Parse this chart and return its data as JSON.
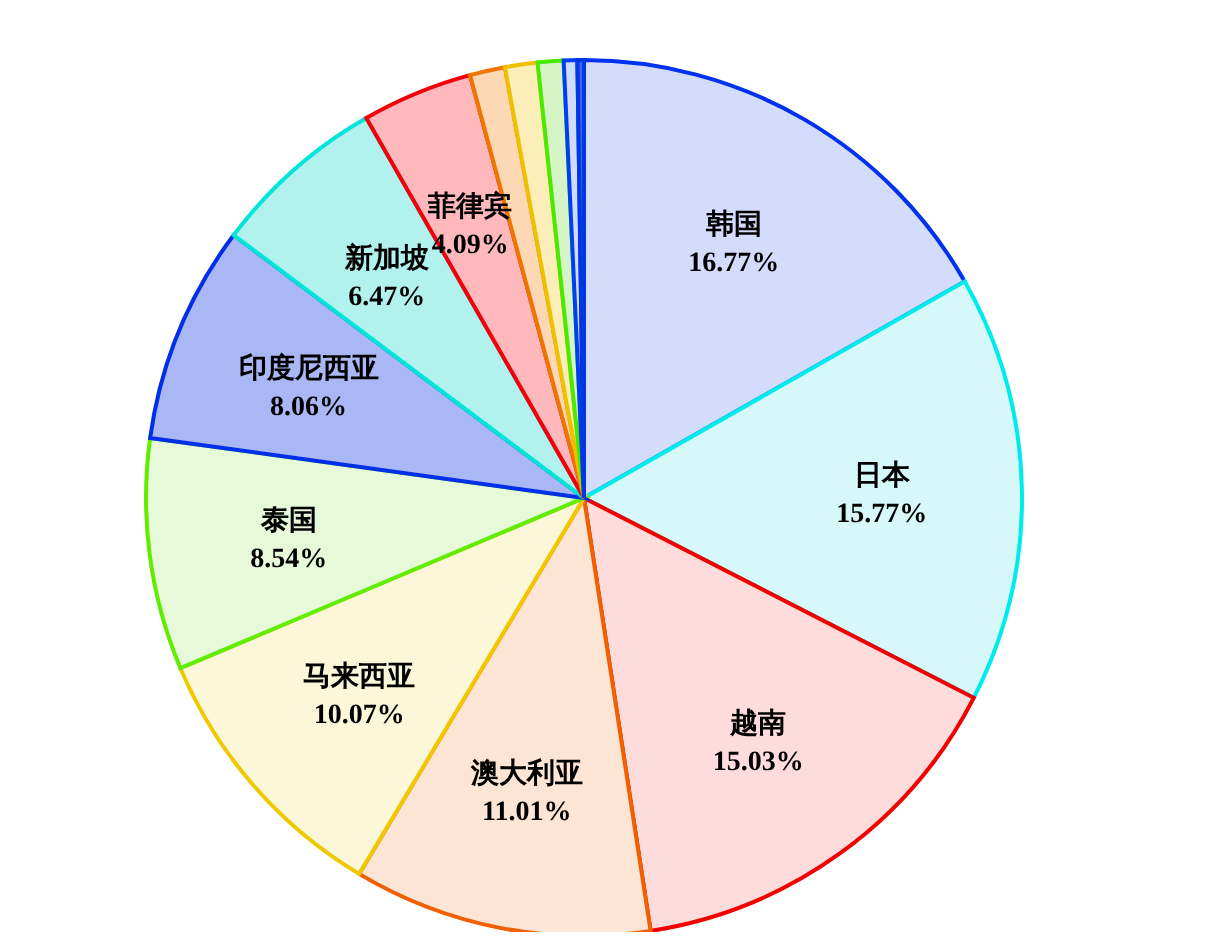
{
  "chart_data": {
    "type": "pie",
    "categories": [
      "韩国",
      "日本",
      "越南",
      "澳大利亚",
      "马来西亚",
      "泰国",
      "印度尼西亚",
      "新加坡",
      "菲律宾",
      null,
      null,
      null,
      null,
      null
    ],
    "values": [
      16.77,
      15.77,
      15.03,
      11.01,
      10.07,
      8.54,
      8.06,
      6.47,
      4.09,
      1.3,
      1.2,
      0.95,
      0.5,
      0.24
    ],
    "value_labels": [
      "16.77%",
      "15.77%",
      "15.03%",
      "11.01%",
      "10.07%",
      "8.54%",
      "8.06%",
      "6.47%",
      "4.09%",
      null,
      null,
      null,
      null,
      null
    ],
    "colors": [
      "#d4dcfb",
      "#d6f8f8",
      "#ffdcdc",
      "#fde5d5",
      "#fdf7d9",
      "#e6f9d9",
      "#a9b8f5",
      "#b2f2ee",
      "#ffb8bb",
      "#fdd8b5",
      "#fbeeb8",
      "#d5f5c6",
      "#d0dcff",
      "#3a66ee"
    ],
    "legend": false
  }
}
